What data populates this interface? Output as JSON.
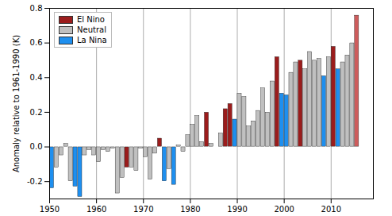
{
  "chart_data": {
    "type": "bar",
    "y_label": "Anomaly relative to 1961-1990 (K)",
    "x": [
      1950,
      1951,
      1952,
      1953,
      1954,
      1955,
      1956,
      1957,
      1958,
      1959,
      1960,
      1961,
      1962,
      1963,
      1964,
      1965,
      1966,
      1967,
      1968,
      1969,
      1970,
      1971,
      1972,
      1973,
      1974,
      1975,
      1976,
      1977,
      1978,
      1979,
      1980,
      1981,
      1982,
      1983,
      1984,
      1985,
      1986,
      1987,
      1988,
      1989,
      1990,
      1991,
      1992,
      1993,
      1994,
      1995,
      1996,
      1997,
      1998,
      1999,
      2000,
      2001,
      2002,
      2003,
      2004,
      2005,
      2006,
      2007,
      2008,
      2009,
      2010,
      2011,
      2012,
      2013,
      2014,
      2015
    ],
    "series": [
      {
        "name": "El Nino",
        "color": "#9b1c1c",
        "colors": [
          "#9b1c1c",
          "#9b1c1c",
          "#9b1c1c",
          "#9b1c1c",
          "#9b1c1c",
          "#9b1c1c",
          "#9b1c1c",
          "#9b1c1c",
          "#9b1c1c",
          "#9b1c1c",
          "#9b1c1c",
          "#9b1c1c",
          "#9b1c1c",
          "#9b1c1c",
          "#9b1c1c",
          "#9b1c1c",
          "#9b1c1c",
          "#9b1c1c",
          "#9b1c1c",
          "#9b1c1c",
          "#9b1c1c",
          "#9b1c1c",
          "#9b1c1c",
          "#9b1c1c",
          "#9b1c1c",
          "#9b1c1c",
          "#9b1c1c",
          "#9b1c1c",
          "#9b1c1c",
          "#9b1c1c",
          "#9b1c1c",
          "#9b1c1c",
          "#9b1c1c",
          "#9b1c1c",
          "#9b1c1c",
          "#9b1c1c",
          "#9b1c1c",
          "#9b1c1c",
          "#9b1c1c",
          "#9b1c1c",
          "#9b1c1c",
          "#9b1c1c",
          "#9b1c1c",
          "#9b1c1c",
          "#9b1c1c",
          "#9b1c1c",
          "#9b1c1c",
          "#9b1c1c",
          "#9b1c1c",
          "#9b1c1c",
          "#9b1c1c",
          "#9b1c1c",
          "#9b1c1c",
          "#9b1c1c",
          "#9b1c1c",
          "#9b1c1c",
          "#9b1c1c",
          "#9b1c1c",
          "#9b1c1c",
          "#9b1c1c",
          "#9b1c1c",
          "#9b1c1c",
          "#9b1c1c",
          "#9b1c1c",
          "#9b1c1c",
          "#cd5c5c"
        ],
        "values": [
          null,
          null,
          null,
          null,
          null,
          null,
          null,
          null,
          null,
          null,
          null,
          null,
          null,
          null,
          null,
          null,
          -0.12,
          null,
          null,
          null,
          null,
          null,
          null,
          0.05,
          null,
          null,
          null,
          null,
          null,
          null,
          null,
          null,
          null,
          0.2,
          null,
          null,
          null,
          0.22,
          0.25,
          null,
          null,
          null,
          null,
          null,
          null,
          null,
          null,
          null,
          0.52,
          null,
          null,
          null,
          null,
          0.5,
          null,
          null,
          null,
          null,
          null,
          null,
          0.58,
          null,
          null,
          null,
          null,
          0.76
        ]
      },
      {
        "name": "Neutral",
        "color": "#c0c0c0",
        "values": [
          null,
          -0.12,
          -0.05,
          0.02,
          -0.2,
          null,
          null,
          -0.05,
          -0.02,
          -0.05,
          -0.09,
          -0.02,
          -0.03,
          -0.01,
          -0.27,
          -0.18,
          null,
          -0.12,
          -0.14,
          -0.01,
          -0.06,
          -0.19,
          -0.04,
          null,
          null,
          -0.13,
          null,
          0.01,
          -0.03,
          0.07,
          0.13,
          0.18,
          0.03,
          null,
          0.02,
          0.0,
          0.08,
          null,
          null,
          null,
          0.31,
          0.29,
          0.12,
          0.15,
          0.21,
          0.34,
          0.2,
          0.38,
          null,
          null,
          null,
          0.43,
          0.49,
          null,
          0.45,
          0.55,
          0.5,
          0.51,
          null,
          0.52,
          null,
          null,
          0.49,
          0.53,
          0.6,
          null
        ]
      },
      {
        "name": "La Nina",
        "color": "#1e8fef",
        "values": [
          -0.24,
          null,
          null,
          null,
          null,
          -0.23,
          -0.29,
          null,
          null,
          null,
          null,
          null,
          null,
          null,
          null,
          null,
          null,
          null,
          null,
          null,
          null,
          null,
          null,
          null,
          -0.2,
          null,
          -0.22,
          null,
          null,
          null,
          null,
          null,
          null,
          null,
          null,
          null,
          null,
          null,
          null,
          0.16,
          null,
          null,
          null,
          null,
          null,
          null,
          null,
          null,
          null,
          0.31,
          0.3,
          null,
          null,
          null,
          null,
          null,
          null,
          null,
          0.41,
          null,
          null,
          0.45,
          null,
          null,
          null,
          null
        ]
      }
    ],
    "xlim": [
      1950,
      2019
    ],
    "xticks": [
      1950,
      1960,
      1970,
      1980,
      1990,
      2000,
      2010
    ],
    "ylim": [
      -0.3,
      0.8
    ],
    "yticks": [
      {
        "value": -0.2,
        "label": "-0.2"
      },
      {
        "value": 0.0,
        "label": "0.0"
      },
      {
        "value": 0.2,
        "label": "0.2"
      },
      {
        "value": 0.4,
        "label": "0.4"
      },
      {
        "value": 0.6,
        "label": "0.6"
      },
      {
        "value": 0.8,
        "label": "0.8"
      }
    ],
    "grid": true,
    "legend": "upper left"
  }
}
